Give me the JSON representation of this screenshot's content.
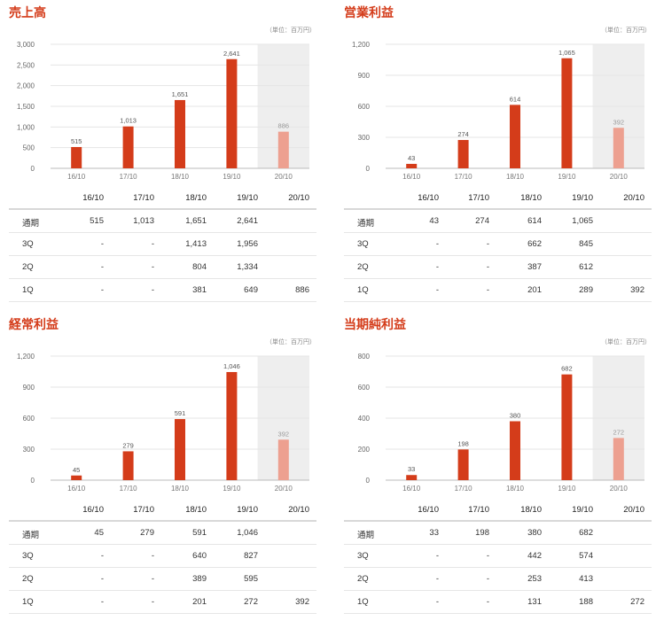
{
  "unit_label": "（単位：百万円）",
  "columns": [
    "16/10",
    "17/10",
    "18/10",
    "19/10",
    "20/10"
  ],
  "row_labels": [
    "通期",
    "3Q",
    "2Q",
    "1Q"
  ],
  "colors": {
    "bar": "#d43c1a",
    "bar_forecast": "#eda090",
    "forecast_bg": "#eeeeee",
    "title": "#d43c1a"
  },
  "panels": [
    {
      "title": "売上高",
      "chart_data": {
        "type": "bar",
        "categories": [
          "16/10",
          "17/10",
          "18/10",
          "19/10",
          "20/10"
        ],
        "values": [
          515,
          1013,
          1651,
          2641,
          886
        ],
        "value_labels": [
          "515",
          "1,013",
          "1,651",
          "2,641",
          "886"
        ],
        "ylim": [
          0,
          3000
        ],
        "yticks": [
          "0",
          "500",
          "1,000",
          "1,500",
          "2,000",
          "2,500",
          "3,000"
        ],
        "forecast_index": 4
      },
      "rows": [
        [
          "515",
          "1,013",
          "1,651",
          "2,641",
          ""
        ],
        [
          "-",
          "-",
          "1,413",
          "1,956",
          ""
        ],
        [
          "-",
          "-",
          "804",
          "1,334",
          ""
        ],
        [
          "-",
          "-",
          "381",
          "649",
          "886"
        ]
      ]
    },
    {
      "title": "営業利益",
      "chart_data": {
        "type": "bar",
        "categories": [
          "16/10",
          "17/10",
          "18/10",
          "19/10",
          "20/10"
        ],
        "values": [
          43,
          274,
          614,
          1065,
          392
        ],
        "value_labels": [
          "43",
          "274",
          "614",
          "1,065",
          "392"
        ],
        "ylim": [
          0,
          1200
        ],
        "yticks": [
          "0",
          "300",
          "600",
          "900",
          "1,200"
        ],
        "forecast_index": 4
      },
      "rows": [
        [
          "43",
          "274",
          "614",
          "1,065",
          ""
        ],
        [
          "-",
          "-",
          "662",
          "845",
          ""
        ],
        [
          "-",
          "-",
          "387",
          "612",
          ""
        ],
        [
          "-",
          "-",
          "201",
          "289",
          "392"
        ]
      ]
    },
    {
      "title": "経常利益",
      "chart_data": {
        "type": "bar",
        "categories": [
          "16/10",
          "17/10",
          "18/10",
          "19/10",
          "20/10"
        ],
        "values": [
          45,
          279,
          591,
          1046,
          392
        ],
        "value_labels": [
          "45",
          "279",
          "591",
          "1,046",
          "392"
        ],
        "ylim": [
          0,
          1200
        ],
        "yticks": [
          "0",
          "300",
          "600",
          "900",
          "1,200"
        ],
        "forecast_index": 4
      },
      "rows": [
        [
          "45",
          "279",
          "591",
          "1,046",
          ""
        ],
        [
          "-",
          "-",
          "640",
          "827",
          ""
        ],
        [
          "-",
          "-",
          "389",
          "595",
          ""
        ],
        [
          "-",
          "-",
          "201",
          "272",
          "392"
        ]
      ]
    },
    {
      "title": "当期純利益",
      "chart_data": {
        "type": "bar",
        "categories": [
          "16/10",
          "17/10",
          "18/10",
          "19/10",
          "20/10"
        ],
        "values": [
          33,
          198,
          380,
          682,
          272
        ],
        "value_labels": [
          "33",
          "198",
          "380",
          "682",
          "272"
        ],
        "ylim": [
          0,
          800
        ],
        "yticks": [
          "0",
          "200",
          "400",
          "600",
          "800"
        ],
        "forecast_index": 4
      },
      "rows": [
        [
          "33",
          "198",
          "380",
          "682",
          ""
        ],
        [
          "-",
          "-",
          "442",
          "574",
          ""
        ],
        [
          "-",
          "-",
          "253",
          "413",
          ""
        ],
        [
          "-",
          "-",
          "131",
          "188",
          "272"
        ]
      ]
    }
  ]
}
